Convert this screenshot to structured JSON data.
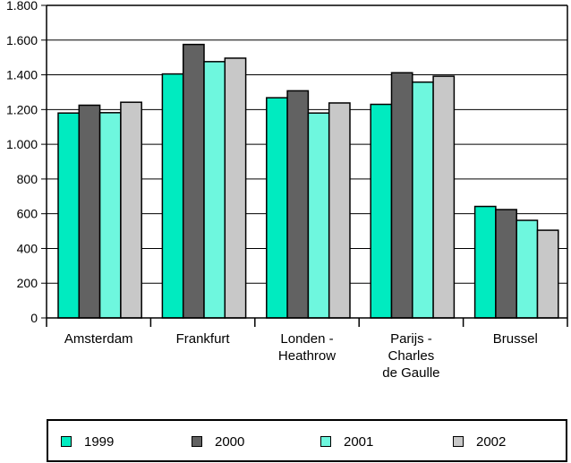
{
  "chart_data": {
    "type": "bar",
    "title": "",
    "xlabel": "",
    "ylabel": "",
    "ylim": [
      0,
      1800
    ],
    "yticks": [
      0,
      200,
      400,
      600,
      800,
      1000,
      1200,
      1400,
      1600,
      1800
    ],
    "ytick_labels": [
      "0",
      "200",
      "400",
      "600",
      "800",
      "1.000",
      "1.200",
      "1.400",
      "1.600",
      "1.800"
    ],
    "grid": true,
    "categories": [
      [
        "Amsterdam"
      ],
      [
        "Frankfurt"
      ],
      [
        "Londen -",
        "Heathrow"
      ],
      [
        "Parijs -",
        "Charles",
        "de Gaulle"
      ],
      [
        "Brussel"
      ]
    ],
    "series": [
      {
        "name": "1999",
        "color": "#00ebc0",
        "values": [
          1180,
          1405,
          1268,
          1230,
          642
        ]
      },
      {
        "name": "2000",
        "color": "#626262",
        "values": [
          1225,
          1575,
          1308,
          1412,
          624
        ]
      },
      {
        "name": "2001",
        "color": "#6ef7de",
        "values": [
          1182,
          1476,
          1180,
          1358,
          562
        ]
      },
      {
        "name": "2002",
        "color": "#c8c8c8",
        "values": [
          1242,
          1496,
          1238,
          1392,
          505
        ]
      }
    ],
    "legend_position": "bottom"
  }
}
